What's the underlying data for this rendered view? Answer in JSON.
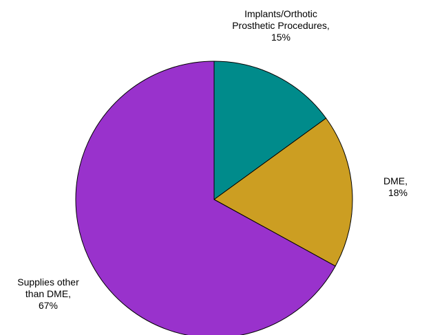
{
  "chart_data": {
    "type": "pie",
    "title": "",
    "start_angle_deg": 90,
    "direction": "clockwise",
    "legend": "none",
    "slices": [
      {
        "category": "Implants/Orthotic Prosthetic Procedures",
        "value": 15,
        "label_lines": [
          "Implants/Orthotic",
          "Prosthetic Procedures,",
          "15%"
        ],
        "color": "#008B8B"
      },
      {
        "category": "DME",
        "value": 18,
        "label_lines": [
          "DME,",
          "18%"
        ],
        "color": "#CC9E22"
      },
      {
        "category": "Supplies other than DME",
        "value": 67,
        "label_lines": [
          "Supplies other",
          "than DME,",
          "67%"
        ],
        "color": "#9932CC"
      }
    ]
  }
}
